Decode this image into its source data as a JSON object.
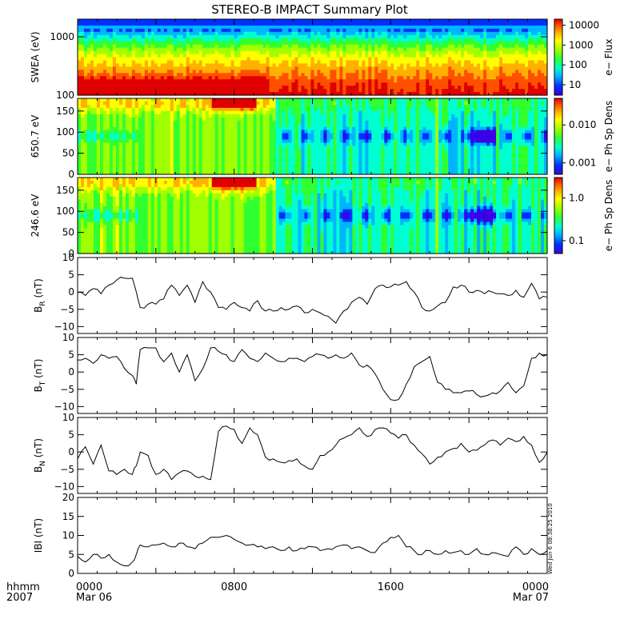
{
  "title": "STEREO-B IMPACT Summary Plot",
  "time_axis": {
    "label_line1": "hhmm",
    "label_line2": "2007",
    "ticks": [
      {
        "hours": 0,
        "hhmm": "0000",
        "date": "Mar 06"
      },
      {
        "hours": 8,
        "hhmm": "0800",
        "date": ""
      },
      {
        "hours": 16,
        "hhmm": "1600",
        "date": ""
      },
      {
        "hours": 24,
        "hhmm": "0000",
        "date": "Mar 07"
      }
    ]
  },
  "timestamp_text": "Wed Jun  6 08:38:25 2010",
  "colors": {
    "background": "#ffffff",
    "frame": "#000000",
    "spectral_scale": [
      "#3b00e6",
      "#0030ff",
      "#00b4ff",
      "#00ffd0",
      "#30ff30",
      "#a0ff00",
      "#ffff00",
      "#ffb000",
      "#ff5000",
      "#e00000"
    ]
  },
  "chart_data": [
    {
      "type": "heatmap",
      "ylabel": "SWEA (eV)",
      "yscale": "log",
      "ylim": [
        100,
        2000
      ],
      "yticks": [
        {
          "value": 100,
          "label": "100"
        },
        {
          "value": 1000,
          "label": "1000"
        }
      ],
      "colorbar": {
        "label": "e− Flux",
        "scale": "log",
        "range": [
          3,
          20000
        ],
        "ticks": [
          {
            "value": 10,
            "label": "10"
          },
          {
            "value": 100,
            "label": "100"
          },
          {
            "value": 1000,
            "label": "1000"
          },
          {
            "value": 10000,
            "label": "10000"
          }
        ]
      },
      "notes": [
        "flux highest (red) at low energies 0000-0930",
        "flux decreasing with energy, blue above ~1500 eV"
      ]
    },
    {
      "type": "heatmap",
      "ylabel": "650.7 eV",
      "ylim": [
        0,
        180
      ],
      "yticks": [
        {
          "value": 0,
          "label": "0"
        },
        {
          "value": 50,
          "label": "50"
        },
        {
          "value": 100,
          "label": "100"
        },
        {
          "value": 150,
          "label": "150"
        }
      ],
      "colorbar": {
        "label": "e− Ph Sp Dens",
        "scale": "log",
        "range": [
          0.0005,
          0.05
        ],
        "ticks": [
          {
            "value": 0.001,
            "label": "0.001"
          },
          {
            "value": 0.01,
            "label": "0.010"
          }
        ]
      },
      "notes": [
        "strong field-aligned strahl (red) near 180 deg 0700-0900",
        "depletions near 90 deg after 1000"
      ]
    },
    {
      "type": "heatmap",
      "ylabel": "246.6 eV",
      "ylim": [
        0,
        180
      ],
      "yticks": [
        {
          "value": 0,
          "label": "0"
        },
        {
          "value": 50,
          "label": "50"
        },
        {
          "value": 100,
          "label": "100"
        },
        {
          "value": 150,
          "label": "150"
        }
      ],
      "colorbar": {
        "label": "e− Ph Sp Dens",
        "scale": "log",
        "range": [
          0.05,
          3
        ],
        "ticks": [
          {
            "value": 0.1,
            "label": "0.1"
          },
          {
            "value": 1.0,
            "label": "1.0"
          }
        ]
      },
      "notes": [
        "strong field-aligned strahl (red) near 180 deg 0700-0900",
        "depletions near 90 deg after 1000"
      ]
    },
    {
      "type": "line",
      "ylabel_main": "B",
      "ylabel_sub": "R",
      "ylabel_unit": "(nT)",
      "ylim": [
        -12,
        10
      ],
      "yticks": [
        {
          "value": -10,
          "label": "−10"
        },
        {
          "value": -5,
          "label": "−5"
        },
        {
          "value": 0,
          "label": "0"
        },
        {
          "value": 5,
          "label": "5"
        },
        {
          "value": 10,
          "label": "10"
        }
      ],
      "x": [
        0.0,
        0.4,
        0.8,
        1.2,
        1.6,
        2.0,
        2.4,
        2.8,
        3.0,
        3.2,
        3.6,
        4.0,
        4.4,
        4.8,
        5.2,
        5.6,
        6.0,
        6.4,
        6.8,
        7.2,
        7.6,
        8.0,
        8.4,
        8.8,
        9.2,
        9.6,
        10.0,
        10.4,
        10.8,
        11.2,
        11.6,
        12.0,
        12.4,
        12.8,
        13.2,
        13.6,
        14.0,
        14.4,
        14.8,
        15.2,
        15.6,
        16.0,
        16.4,
        16.8,
        17.2,
        17.6,
        18.0,
        18.4,
        18.8,
        19.2,
        19.6,
        20.0,
        20.4,
        20.8,
        21.2,
        21.6,
        22.0,
        22.4,
        22.8,
        23.2,
        23.6,
        24.0
      ],
      "y": [
        0.0,
        -1.0,
        1.0,
        -0.5,
        2.0,
        3.5,
        4.0,
        4.0,
        0.0,
        -4.5,
        -3.5,
        -3.5,
        -2.0,
        2.0,
        -1.0,
        2.0,
        -3.0,
        3.0,
        0.0,
        -4.5,
        -5.0,
        -3.0,
        -4.5,
        -5.5,
        -2.5,
        -5.5,
        -5.5,
        -4.5,
        -5.0,
        -4.0,
        -6.0,
        -5.0,
        -6.0,
        -7.0,
        -9.0,
        -5.5,
        -3.0,
        -1.5,
        -3.5,
        1.0,
        2.0,
        1.5,
        2.0,
        3.0,
        0.0,
        -4.5,
        -5.5,
        -4.0,
        -3.0,
        1.5,
        2.0,
        0.0,
        0.5,
        -0.5,
        0.0,
        -0.5,
        -1.0,
        0.5,
        -1.5,
        2.5,
        -2.0,
        -1.5
      ]
    },
    {
      "type": "line",
      "ylabel_main": "B",
      "ylabel_sub": "T",
      "ylabel_unit": "(nT)",
      "ylim": [
        -12,
        10
      ],
      "yticks": [
        {
          "value": -10,
          "label": "−10"
        },
        {
          "value": -5,
          "label": "−5"
        },
        {
          "value": 0,
          "label": "0"
        },
        {
          "value": 5,
          "label": "5"
        },
        {
          "value": 10,
          "label": "10"
        }
      ],
      "x": [
        0.0,
        0.4,
        0.8,
        1.2,
        1.6,
        2.0,
        2.4,
        2.8,
        3.0,
        3.2,
        3.6,
        4.0,
        4.4,
        4.8,
        5.2,
        5.6,
        6.0,
        6.4,
        6.8,
        7.2,
        7.6,
        8.0,
        8.4,
        8.8,
        9.2,
        9.6,
        10.0,
        10.4,
        10.8,
        11.2,
        11.6,
        12.0,
        12.4,
        12.8,
        13.2,
        13.6,
        14.0,
        14.4,
        14.8,
        15.2,
        15.6,
        16.0,
        16.4,
        16.8,
        17.2,
        17.6,
        18.0,
        18.4,
        18.8,
        19.2,
        19.6,
        20.0,
        20.4,
        20.8,
        21.2,
        21.6,
        22.0,
        22.4,
        22.8,
        23.2,
        23.6,
        24.0
      ],
      "y": [
        3.5,
        4.0,
        2.5,
        5.0,
        4.0,
        4.5,
        1.0,
        -1.0,
        -3.5,
        6.5,
        7.0,
        7.0,
        3.0,
        5.5,
        0.0,
        5.0,
        -2.5,
        1.0,
        7.0,
        6.0,
        5.0,
        3.0,
        6.5,
        4.0,
        3.0,
        5.5,
        4.0,
        3.0,
        4.0,
        4.0,
        3.0,
        4.5,
        5.0,
        4.0,
        5.0,
        4.0,
        5.5,
        2.0,
        2.0,
        -0.5,
        -5.0,
        -8.0,
        -8.0,
        -3.5,
        1.5,
        3.0,
        4.5,
        -3.0,
        -5.0,
        -6.0,
        -6.0,
        -5.5,
        -6.5,
        -7.0,
        -6.0,
        -5.5,
        -3.0,
        -6.0,
        -4.0,
        4.0,
        5.5,
        5.0
      ]
    },
    {
      "type": "line",
      "ylabel_main": "B",
      "ylabel_sub": "N",
      "ylabel_unit": "(nT)",
      "ylim": [
        -12,
        10
      ],
      "yticks": [
        {
          "value": -10,
          "label": "−10"
        },
        {
          "value": -5,
          "label": "−5"
        },
        {
          "value": 0,
          "label": "0"
        },
        {
          "value": 5,
          "label": "5"
        },
        {
          "value": 10,
          "label": "10"
        }
      ],
      "x": [
        0.0,
        0.4,
        0.8,
        1.2,
        1.6,
        2.0,
        2.4,
        2.8,
        3.0,
        3.2,
        3.6,
        4.0,
        4.4,
        4.8,
        5.2,
        5.6,
        6.0,
        6.4,
        6.8,
        7.2,
        7.6,
        8.0,
        8.4,
        8.8,
        9.2,
        9.6,
        10.0,
        10.4,
        10.8,
        11.2,
        11.6,
        12.0,
        12.4,
        12.8,
        13.2,
        13.6,
        14.0,
        14.4,
        14.8,
        15.2,
        15.6,
        16.0,
        16.4,
        16.8,
        17.2,
        17.6,
        18.0,
        18.4,
        18.8,
        19.2,
        19.6,
        20.0,
        20.4,
        20.8,
        21.2,
        21.6,
        22.0,
        22.4,
        22.8,
        23.2,
        23.6,
        24.0
      ],
      "y": [
        -2.0,
        1.5,
        -3.5,
        2.0,
        -5.5,
        -6.5,
        -5.0,
        -6.5,
        -4.0,
        0.0,
        -1.0,
        -6.5,
        -5.0,
        -8.0,
        -6.0,
        -5.5,
        -7.0,
        -7.0,
        -8.0,
        6.0,
        7.5,
        6.5,
        2.5,
        7.0,
        5.0,
        -1.5,
        -2.0,
        -3.0,
        -2.5,
        -2.0,
        -4.0,
        -5.0,
        -1.0,
        0.0,
        2.0,
        4.0,
        5.0,
        7.0,
        4.5,
        6.5,
        7.0,
        5.5,
        4.0,
        5.0,
        2.0,
        -0.5,
        -3.5,
        -1.5,
        0.0,
        1.0,
        2.5,
        0.0,
        0.5,
        2.0,
        3.5,
        2.0,
        4.0,
        3.0,
        4.5,
        2.0,
        -3.0,
        0.0
      ]
    },
    {
      "type": "line",
      "ylabel_main": "|B|",
      "ylabel_sub": "",
      "ylabel_unit": "(nT)",
      "ylabel_text": "IBI (nT)",
      "ylim": [
        0,
        20
      ],
      "yticks": [
        {
          "value": 0,
          "label": "0"
        },
        {
          "value": 5,
          "label": "5"
        },
        {
          "value": 10,
          "label": "10"
        },
        {
          "value": 15,
          "label": "15"
        },
        {
          "value": 20,
          "label": "20"
        }
      ],
      "x": [
        0.0,
        0.4,
        0.8,
        1.2,
        1.6,
        2.0,
        2.4,
        2.8,
        3.0,
        3.2,
        3.6,
        4.0,
        4.4,
        4.8,
        5.2,
        5.6,
        6.0,
        6.4,
        6.8,
        7.2,
        7.6,
        8.0,
        8.4,
        8.8,
        9.2,
        9.6,
        10.0,
        10.4,
        10.8,
        11.2,
        11.6,
        12.0,
        12.4,
        12.8,
        13.2,
        13.6,
        14.0,
        14.4,
        14.8,
        15.2,
        15.6,
        16.0,
        16.4,
        16.8,
        17.2,
        17.6,
        18.0,
        18.4,
        18.8,
        19.2,
        19.6,
        20.0,
        20.4,
        20.8,
        21.2,
        21.6,
        22.0,
        22.4,
        22.8,
        23.2,
        23.6,
        24.0
      ],
      "y": [
        4.5,
        3.0,
        5.0,
        4.0,
        5.0,
        3.0,
        2.0,
        3.0,
        5.0,
        7.5,
        7.0,
        7.5,
        8.0,
        7.0,
        8.0,
        7.0,
        6.5,
        8.0,
        9.5,
        9.5,
        10.0,
        9.0,
        8.0,
        7.5,
        7.0,
        6.5,
        7.0,
        6.0,
        7.0,
        6.0,
        6.5,
        7.0,
        6.0,
        6.5,
        7.0,
        7.5,
        6.5,
        7.0,
        6.0,
        5.5,
        8.0,
        9.5,
        10.0,
        7.0,
        6.0,
        5.0,
        6.0,
        5.0,
        6.0,
        5.5,
        6.0,
        5.0,
        6.5,
        5.0,
        5.5,
        5.0,
        4.5,
        7.0,
        5.0,
        6.5,
        5.0,
        6.0
      ]
    }
  ]
}
